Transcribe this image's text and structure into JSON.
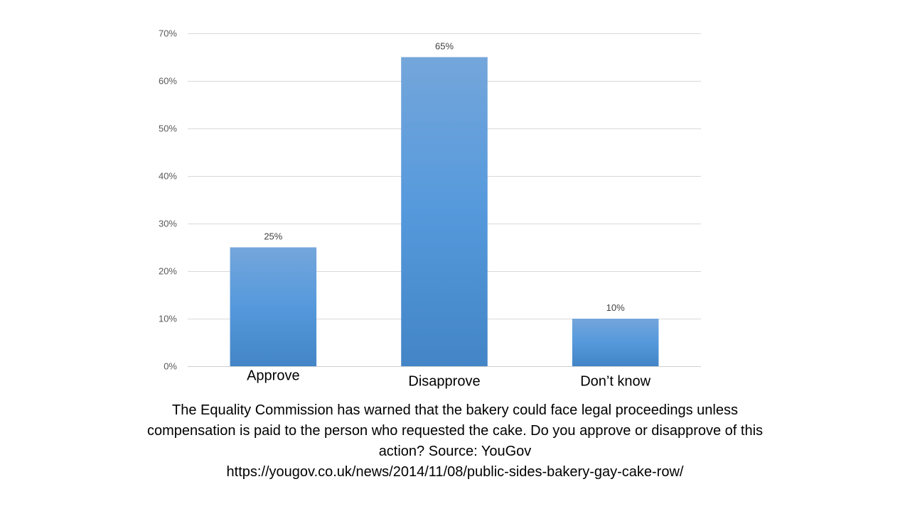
{
  "chart_data": {
    "type": "bar",
    "categories": [
      "Approve",
      "Disapprove",
      "Don’t know"
    ],
    "values": [
      25,
      65,
      10
    ],
    "data_labels": [
      "25%",
      "65%",
      "10%"
    ],
    "ylim": [
      0,
      70
    ],
    "yticks": [
      0,
      10,
      20,
      30,
      40,
      50,
      60,
      70
    ],
    "ytick_labels": [
      "0%",
      "10%",
      "20%",
      "30%",
      "40%",
      "50%",
      "60%",
      "70%"
    ],
    "grid": true,
    "legend": "none",
    "bar_color_top": "#74a6db",
    "bar_color_mid": "#5599dc",
    "bar_color_bottom": "#4385c6"
  },
  "caption": {
    "line1": "The Equality Commission has warned that the bakery could face legal proceedings unless",
    "line2": "compensation is paid to the person who requested the cake. Do you approve or disapprove of this",
    "line3": "action? Source: YouGov",
    "line4": "https://yougov.co.uk/news/2014/11/08/public-sides-bakery-gay-cake-row/"
  }
}
